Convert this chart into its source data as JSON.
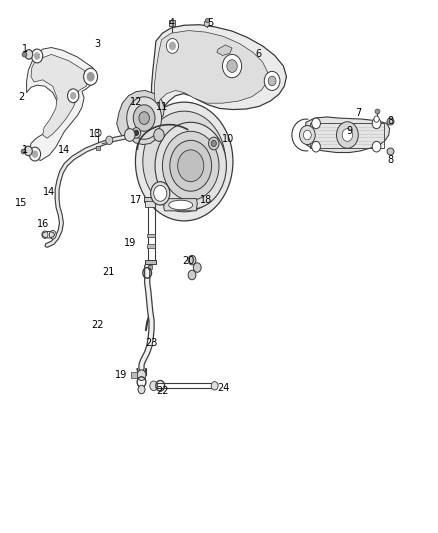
{
  "bg_color": "#ffffff",
  "line_color": "#3a3a3a",
  "fig_width": 4.38,
  "fig_height": 5.33,
  "dpi": 100,
  "label_fs": 7.0,
  "labels": {
    "1a": [
      0.055,
      0.91,
      "1"
    ],
    "1b": [
      0.055,
      0.72,
      "1"
    ],
    "2": [
      0.045,
      0.82,
      "2"
    ],
    "3": [
      0.22,
      0.92,
      "3"
    ],
    "4": [
      0.39,
      0.96,
      "4"
    ],
    "5": [
      0.48,
      0.96,
      "5"
    ],
    "6": [
      0.59,
      0.9,
      "6"
    ],
    "7": [
      0.82,
      0.79,
      "7"
    ],
    "8a": [
      0.895,
      0.775,
      "8"
    ],
    "8b": [
      0.895,
      0.7,
      "8"
    ],
    "9": [
      0.8,
      0.755,
      "9"
    ],
    "10": [
      0.52,
      0.74,
      "10"
    ],
    "11": [
      0.37,
      0.8,
      "11"
    ],
    "12": [
      0.31,
      0.81,
      "12"
    ],
    "13": [
      0.215,
      0.75,
      "13"
    ],
    "14a": [
      0.145,
      0.72,
      "14"
    ],
    "14b": [
      0.11,
      0.64,
      "14"
    ],
    "15": [
      0.045,
      0.62,
      "15"
    ],
    "16": [
      0.095,
      0.58,
      "16"
    ],
    "17": [
      0.31,
      0.625,
      "17"
    ],
    "18": [
      0.47,
      0.625,
      "18"
    ],
    "19a": [
      0.295,
      0.545,
      "19"
    ],
    "19b": [
      0.275,
      0.295,
      "19"
    ],
    "20": [
      0.43,
      0.51,
      "20"
    ],
    "21": [
      0.245,
      0.49,
      "21"
    ],
    "22a": [
      0.22,
      0.39,
      "22"
    ],
    "22b": [
      0.37,
      0.265,
      "22"
    ],
    "23": [
      0.345,
      0.355,
      "23"
    ],
    "24": [
      0.51,
      0.27,
      "24"
    ]
  }
}
